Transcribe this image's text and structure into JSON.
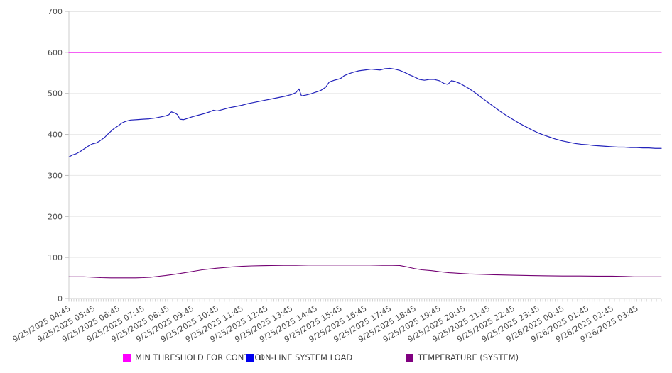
{
  "chart_data": {
    "type": "line",
    "title": "",
    "xlabel": "",
    "ylabel": "",
    "ylim": [
      0,
      700
    ],
    "y_ticks": [
      0,
      100,
      200,
      300,
      400,
      500,
      600,
      700
    ],
    "x_span_hours": 24,
    "grid": "horizontal-on",
    "legend_position": "bottom",
    "categories": [
      "9/25/2025 04:45",
      "9/25/2025 05:45",
      "9/25/2025 06:45",
      "9/25/2025 07:45",
      "9/25/2025 08:45",
      "9/25/2025 09:45",
      "9/25/2025 10:45",
      "9/25/2025 11:45",
      "9/25/2025 12:45",
      "9/25/2025 13:45",
      "9/25/2025 14:45",
      "9/25/2025 15:45",
      "9/25/2025 16:45",
      "9/25/2025 17:45",
      "9/25/2025 18:45",
      "9/25/2025 19:45",
      "9/25/2025 20:45",
      "9/25/2025 21:45",
      "9/25/2025 22:45",
      "9/25/2025 23:45",
      "9/26/2025 00:45",
      "9/26/2025 01:45",
      "9/26/2025 02:45",
      "9/26/2025 03:45"
    ],
    "series": [
      {
        "name": "MIN THRESHOLD FOR CONTROL",
        "swatch_color": "#ff00ff",
        "line_color": "#ee00ee",
        "line_width": 1.5,
        "points": [
          [
            0,
            600
          ],
          [
            24,
            600
          ]
        ]
      },
      {
        "name": "ON-LINE SYSTEM LOAD",
        "swatch_color": "#0000ee",
        "line_color": "#2323bb",
        "line_width": 1.2,
        "points": [
          [
            0,
            345
          ],
          [
            0.15,
            350
          ],
          [
            0.3,
            353
          ],
          [
            0.45,
            358
          ],
          [
            0.6,
            364
          ],
          [
            0.8,
            372
          ],
          [
            0.95,
            377
          ],
          [
            1.1,
            379
          ],
          [
            1.25,
            384
          ],
          [
            1.45,
            393
          ],
          [
            1.6,
            402
          ],
          [
            1.8,
            413
          ],
          [
            2,
            421
          ],
          [
            2.15,
            428
          ],
          [
            2.3,
            432
          ],
          [
            2.5,
            435
          ],
          [
            2.75,
            436
          ],
          [
            3,
            437
          ],
          [
            3.25,
            438
          ],
          [
            3.5,
            440
          ],
          [
            3.75,
            443
          ],
          [
            3.9,
            445
          ],
          [
            4.05,
            448
          ],
          [
            4.15,
            455
          ],
          [
            4.3,
            452
          ],
          [
            4.4,
            448
          ],
          [
            4.5,
            437
          ],
          [
            4.65,
            436
          ],
          [
            4.8,
            439
          ],
          [
            5,
            443
          ],
          [
            5.25,
            447
          ],
          [
            5.5,
            451
          ],
          [
            5.7,
            455
          ],
          [
            5.85,
            459
          ],
          [
            6,
            457
          ],
          [
            6.25,
            461
          ],
          [
            6.5,
            465
          ],
          [
            6.75,
            468
          ],
          [
            7,
            471
          ],
          [
            7.25,
            475
          ],
          [
            7.5,
            478
          ],
          [
            7.75,
            481
          ],
          [
            8,
            484
          ],
          [
            8.25,
            487
          ],
          [
            8.5,
            490
          ],
          [
            8.75,
            493
          ],
          [
            9,
            497
          ],
          [
            9.2,
            502
          ],
          [
            9.32,
            511
          ],
          [
            9.42,
            494
          ],
          [
            9.6,
            496
          ],
          [
            9.8,
            499
          ],
          [
            10,
            503
          ],
          [
            10.2,
            507
          ],
          [
            10.4,
            515
          ],
          [
            10.55,
            528
          ],
          [
            10.75,
            532
          ],
          [
            11,
            536
          ],
          [
            11.15,
            543
          ],
          [
            11.3,
            547
          ],
          [
            11.5,
            551
          ],
          [
            11.75,
            555
          ],
          [
            12,
            557
          ],
          [
            12.25,
            559
          ],
          [
            12.4,
            558
          ],
          [
            12.6,
            557
          ],
          [
            12.8,
            560
          ],
          [
            13,
            561
          ],
          [
            13.2,
            559
          ],
          [
            13.4,
            556
          ],
          [
            13.6,
            551
          ],
          [
            13.8,
            545
          ],
          [
            14,
            540
          ],
          [
            14.2,
            534
          ],
          [
            14.4,
            532
          ],
          [
            14.6,
            534
          ],
          [
            14.8,
            534
          ],
          [
            15,
            531
          ],
          [
            15.2,
            524
          ],
          [
            15.35,
            522
          ],
          [
            15.5,
            531
          ],
          [
            15.65,
            529
          ],
          [
            15.85,
            524
          ],
          [
            16,
            519
          ],
          [
            16.2,
            512
          ],
          [
            16.4,
            504
          ],
          [
            16.6,
            495
          ],
          [
            16.8,
            486
          ],
          [
            17,
            477
          ],
          [
            17.25,
            466
          ],
          [
            17.5,
            455
          ],
          [
            17.75,
            445
          ],
          [
            18,
            436
          ],
          [
            18.25,
            427
          ],
          [
            18.5,
            419
          ],
          [
            18.75,
            411
          ],
          [
            19,
            404
          ],
          [
            19.25,
            398
          ],
          [
            19.5,
            393
          ],
          [
            19.75,
            388
          ],
          [
            20,
            384
          ],
          [
            20.25,
            381
          ],
          [
            20.5,
            378
          ],
          [
            20.75,
            376
          ],
          [
            21,
            375
          ],
          [
            21.25,
            373
          ],
          [
            21.5,
            372
          ],
          [
            21.75,
            371
          ],
          [
            22,
            370
          ],
          [
            22.25,
            369
          ],
          [
            22.5,
            369
          ],
          [
            22.75,
            368
          ],
          [
            23,
            368
          ],
          [
            23.25,
            367
          ],
          [
            23.5,
            367
          ],
          [
            23.75,
            366
          ],
          [
            24,
            366
          ]
        ]
      },
      {
        "name": "TEMPERATURE (SYSTEM)",
        "swatch_color": "#800080",
        "line_color": "#730073",
        "line_width": 1.1,
        "points": [
          [
            0,
            53
          ],
          [
            0.6,
            53
          ],
          [
            1,
            52
          ],
          [
            1.3,
            51
          ],
          [
            1.7,
            50.5
          ],
          [
            2.2,
            50.5
          ],
          [
            2.7,
            50.5
          ],
          [
            3,
            51
          ],
          [
            3.3,
            52
          ],
          [
            3.6,
            54
          ],
          [
            3.9,
            56
          ],
          [
            4.2,
            58.5
          ],
          [
            4.5,
            61
          ],
          [
            4.8,
            64
          ],
          [
            5.1,
            67
          ],
          [
            5.4,
            70
          ],
          [
            5.7,
            72
          ],
          [
            6,
            74
          ],
          [
            6.3,
            75.5
          ],
          [
            6.6,
            77
          ],
          [
            7,
            78.5
          ],
          [
            7.4,
            79.5
          ],
          [
            7.8,
            80
          ],
          [
            8.2,
            80.5
          ],
          [
            8.7,
            81
          ],
          [
            9.2,
            81
          ],
          [
            9.7,
            81.5
          ],
          [
            10.2,
            81.5
          ],
          [
            10.7,
            81.5
          ],
          [
            11.2,
            81.5
          ],
          [
            11.7,
            81.5
          ],
          [
            12.2,
            81.5
          ],
          [
            12.7,
            81
          ],
          [
            13.1,
            81
          ],
          [
            13.4,
            80.5
          ],
          [
            13.7,
            77
          ],
          [
            14,
            73
          ],
          [
            14.3,
            70
          ],
          [
            14.7,
            68
          ],
          [
            15,
            65.5
          ],
          [
            15.4,
            63
          ],
          [
            15.8,
            61.5
          ],
          [
            16.2,
            60
          ],
          [
            16.7,
            59
          ],
          [
            17.2,
            58
          ],
          [
            18,
            57
          ],
          [
            18.7,
            56
          ],
          [
            19.4,
            55.5
          ],
          [
            20,
            55
          ],
          [
            20.7,
            55
          ],
          [
            21.4,
            54.5
          ],
          [
            22,
            54.5
          ],
          [
            22.5,
            54
          ],
          [
            22.9,
            53
          ],
          [
            23.5,
            53
          ],
          [
            24,
            53
          ]
        ]
      }
    ]
  },
  "legend": {
    "items": [
      {
        "label": "MIN THRESHOLD FOR CONTROL"
      },
      {
        "label": "ON-LINE SYSTEM LOAD"
      },
      {
        "label": "TEMPERATURE (SYSTEM)"
      }
    ]
  }
}
